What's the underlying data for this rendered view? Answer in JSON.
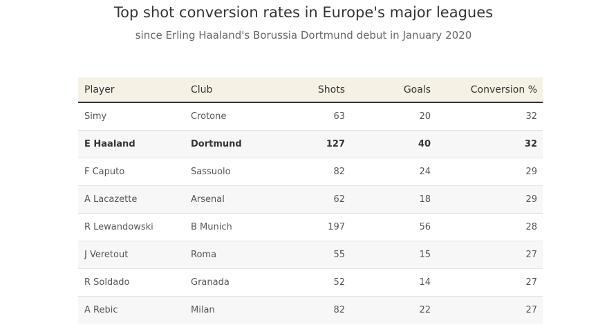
{
  "chart_data": {
    "type": "table",
    "title": "Top shot conversion rates in Europe's major leagues",
    "subtitle": "since Erling Haaland's Borussia Dortmund debut in January 2020",
    "columns": [
      "Player",
      "Club",
      "Shots",
      "Goals",
      "Conversion %"
    ],
    "rows": [
      {
        "player": "Simy",
        "club": "Crotone",
        "shots": "63",
        "goals": "20",
        "conversion": "32"
      },
      {
        "player": "E Haaland",
        "club": "Dortmund",
        "shots": "127",
        "goals": "40",
        "conversion": "32",
        "highlight": true
      },
      {
        "player": "F Caputo",
        "club": "Sassuolo",
        "shots": "82",
        "goals": "24",
        "conversion": "29"
      },
      {
        "player": "A Lacazette",
        "club": "Arsenal",
        "shots": "62",
        "goals": "18",
        "conversion": "29"
      },
      {
        "player": "R Lewandowski",
        "club": "B Munich",
        "shots": "197",
        "goals": "56",
        "conversion": "28"
      },
      {
        "player": "J Veretout",
        "club": "Roma",
        "shots": "55",
        "goals": "15",
        "conversion": "27"
      },
      {
        "player": "R Soldado",
        "club": "Granada",
        "shots": "52",
        "goals": "14",
        "conversion": "27"
      },
      {
        "player": "A Rebic",
        "club": "Milan",
        "shots": "82",
        "goals": "22",
        "conversion": "27"
      }
    ]
  },
  "colors": {
    "header_bg": "#f6f1e5",
    "header_rule": "#333333",
    "alt_row_bg": "#f7f7f7",
    "row_divider": "#e2e2e2",
    "title_text": "#333333",
    "subtitle_text": "#666666",
    "body_text": "#555555"
  }
}
